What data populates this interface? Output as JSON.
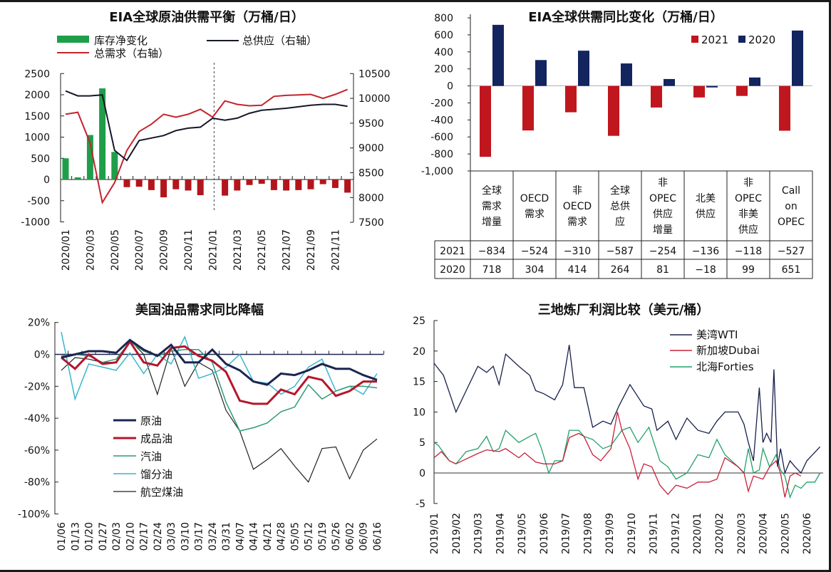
{
  "chart_data": [
    {
      "type": "bar+line",
      "title": "EIA全球原油供需平衡（万桶/日）",
      "legend": [
        "库存净变化",
        "总需求（右轴）",
        "总供应（右轴）"
      ],
      "colors": {
        "inventory_pos": "#1f9e4a",
        "inventory_neg": "#b3151c",
        "demand": "#c3242c",
        "supply": "#15172a"
      },
      "months": [
        "2020/01",
        "2020/02",
        "2020/03",
        "2020/04",
        "2020/05",
        "2020/06",
        "2020/07",
        "2020/08",
        "2020/09",
        "2020/10",
        "2020/11",
        "2020/12",
        "2021/01",
        "2021/02",
        "2021/03",
        "2021/04",
        "2021/05",
        "2021/06",
        "2021/07",
        "2021/08",
        "2021/09",
        "2021/10",
        "2021/11",
        "2021/12"
      ],
      "x_labels": [
        "2020/01",
        "2020/03",
        "2020/05",
        "2020/07",
        "2020/09",
        "2020/11",
        "2021/01",
        "2021/03",
        "2021/05",
        "2021/07",
        "2021/09",
        "2021/11"
      ],
      "y_left_ticks": [
        2500,
        2000,
        1500,
        1000,
        500,
        0,
        -500,
        -1000
      ],
      "y_right_ticks": [
        10500,
        10000,
        9500,
        9000,
        8500,
        8000,
        7500
      ],
      "ylim_left": [
        -1000,
        2500
      ],
      "ylim_right": [
        7500,
        10500
      ],
      "forecast_divider": "2021/01",
      "series": [
        {
          "name": "库存净变化",
          "axis": "left",
          "kind": "bar",
          "values": [
            500,
            50,
            1050,
            2150,
            650,
            -180,
            -170,
            -250,
            -420,
            -230,
            -260,
            -370,
            0,
            -380,
            -260,
            -130,
            -100,
            -250,
            -260,
            -250,
            -230,
            -110,
            -200,
            -310
          ]
        },
        {
          "name": "总需求（右轴）",
          "axis": "right",
          "kind": "line",
          "values": [
            9680,
            9720,
            9100,
            7900,
            8300,
            8950,
            9330,
            9480,
            9680,
            9620,
            9680,
            9780,
            9620,
            9950,
            9880,
            9850,
            9860,
            10040,
            10060,
            10070,
            10080,
            10000,
            10080,
            10180
          ]
        },
        {
          "name": "总供应（右轴）",
          "axis": "right",
          "kind": "line",
          "values": [
            10150,
            10050,
            10050,
            10070,
            8950,
            8750,
            9150,
            9200,
            9250,
            9350,
            9400,
            9420,
            9600,
            9560,
            9600,
            9700,
            9760,
            9780,
            9800,
            9830,
            9860,
            9880,
            9880,
            9840
          ]
        }
      ]
    },
    {
      "type": "bar+table",
      "title": "EIA全球供需同比变化（万桶/日）",
      "legend": [
        "2021",
        "2020"
      ],
      "colors": {
        "2021": "#c0161e",
        "2020": "#13245e"
      },
      "y_ticks": [
        "800",
        "600",
        "400",
        "200",
        "0",
        "-200",
        "-400",
        "-600",
        "-800",
        "-1,000"
      ],
      "ylim": [
        -1000,
        800
      ],
      "categories": [
        "全球\n需求\n增量",
        "OECD\n需求",
        "非\nOECD\n需求",
        "全球\n总供\n应",
        "非\nOPEC\n供应\n增量",
        "北美\n供应",
        "非\nOPEC\n非美\n供应",
        "Call\non\nOPEC"
      ],
      "series": [
        {
          "name": "2021",
          "values": [
            -834,
            -524,
            -310,
            -587,
            -254,
            -136,
            -118,
            -527
          ]
        },
        {
          "name": "2020",
          "values": [
            718,
            304,
            414,
            264,
            81,
            -18,
            99,
            651
          ]
        }
      ]
    },
    {
      "type": "line",
      "title": "美国油品需求同比降幅",
      "x": [
        "01/06",
        "01/13",
        "01/20",
        "01/27",
        "02/03",
        "02/10",
        "02/17",
        "02/24",
        "03/03",
        "03/10",
        "03/17",
        "03/24",
        "03/31",
        "04/07",
        "04/14",
        "04/21",
        "04/28",
        "05/05",
        "05/12",
        "05/19",
        "05/26",
        "06/02",
        "06/09",
        "06/16"
      ],
      "y_ticks": [
        "20%",
        "0%",
        "-20%",
        "-40%",
        "-60%",
        "-80%",
        "-100%"
      ],
      "ylim": [
        -100,
        20
      ],
      "legend_position": "lower-left",
      "series": [
        {
          "name": "原油",
          "color": "#1b2550",
          "values": [
            -2,
            0,
            2,
            2,
            1,
            9,
            3,
            -1,
            6,
            -5,
            -5,
            3,
            -6,
            -10,
            -17,
            -19,
            -12,
            -13,
            -10,
            -6,
            -9,
            -9,
            -13,
            -16
          ]
        },
        {
          "name": "成品油",
          "color": "#b5162a",
          "values": [
            -2,
            -9,
            0,
            -6,
            -5,
            8,
            -5,
            -7,
            4,
            5,
            -1,
            -4,
            -11,
            -29,
            -31,
            -31,
            -22,
            -25,
            -14,
            -16,
            -26,
            -23,
            -17,
            -17
          ]
        },
        {
          "name": "汽油",
          "color": "#2e9c74",
          "values": [
            -1,
            0,
            -1,
            -5,
            -3,
            8,
            2,
            -1,
            2,
            3,
            3,
            -5,
            -30,
            -48,
            -46,
            -43,
            -36,
            -33,
            -19,
            -28,
            -23,
            -20,
            -20,
            -21
          ]
        },
        {
          "name": "馏分油",
          "color": "#3ab6cc",
          "values": [
            14,
            -28,
            -6,
            -8,
            -10,
            1,
            -12,
            0,
            -6,
            11,
            -15,
            -12,
            -8,
            0,
            -17,
            -18,
            -25,
            -20,
            -8,
            -3,
            -23,
            -20,
            -25,
            -12
          ]
        },
        {
          "name": "航空煤油",
          "color": "#222222",
          "values": [
            -10,
            -2,
            -3,
            -5,
            -5,
            9,
            0,
            -25,
            4,
            -20,
            -5,
            -10,
            -35,
            -48,
            -72,
            -66,
            -59,
            -70,
            -80,
            -59,
            -58,
            -78,
            -60,
            -53
          ]
        }
      ]
    },
    {
      "type": "line",
      "title": "三地炼厂利润比较（美元/桶）",
      "x_labels": [
        "2019/01",
        "2019/02",
        "2019/03",
        "2019/04",
        "2019/05",
        "2019/06",
        "2019/07",
        "2019/08",
        "2019/09",
        "2019/10",
        "2019/11",
        "2019/12",
        "2020/01",
        "2020/02",
        "2020/03",
        "2020/04",
        "2020/05",
        "2020/06"
      ],
      "y_ticks": [
        "25",
        "20",
        "15",
        "10",
        "5",
        "0",
        "-5"
      ],
      "ylim": [
        -5,
        25
      ],
      "legend_position": "top-right",
      "series": [
        {
          "name": "美湾WTI",
          "color": "#17204a",
          "x": [
            "2019-01-01",
            "2019-01-14",
            "2019-02-01",
            "2019-02-15",
            "2019-03-01",
            "2019-03-13",
            "2019-03-22",
            "2019-03-30",
            "2019-04-09",
            "2019-04-27",
            "2019-05-12",
            "2019-05-20",
            "2019-06-01",
            "2019-06-16",
            "2019-06-27",
            "2019-07-06",
            "2019-07-13",
            "2019-07-26",
            "2019-08-08",
            "2019-08-22",
            "2019-09-03",
            "2019-09-14",
            "2019-09-29",
            "2019-10-18",
            "2019-10-29",
            "2019-11-06",
            "2019-11-21",
            "2019-12-02",
            "2019-12-17",
            "2020-01-02",
            "2020-01-17",
            "2020-01-28",
            "2020-02-09",
            "2020-02-27",
            "2020-03-05",
            "2020-03-11",
            "2020-03-18",
            "2020-03-26",
            "2020-04-01",
            "2020-04-06",
            "2020-04-12",
            "2020-04-16",
            "2020-04-21",
            "2020-04-25",
            "2020-05-01",
            "2020-05-08",
            "2020-05-15",
            "2020-05-23",
            "2020-06-01",
            "2020-06-19"
          ],
          "values": [
            18,
            16,
            10,
            13.5,
            17.5,
            16.5,
            17.5,
            14.5,
            19.5,
            17.5,
            16,
            13.5,
            13,
            12,
            14.5,
            21,
            14,
            14,
            7.5,
            8.5,
            8,
            11,
            14.5,
            11,
            10.5,
            7,
            8.5,
            5.5,
            9,
            7,
            6.5,
            8.5,
            10,
            10,
            8,
            5,
            2,
            14,
            5,
            6.5,
            5,
            17,
            1,
            4,
            0,
            2,
            1,
            0,
            2,
            4.3
          ]
        },
        {
          "name": "新加坡Dubai",
          "color": "#c8203a",
          "x": [
            "2019-01-01",
            "2019-01-11",
            "2019-01-22",
            "2019-02-01",
            "2019-02-15",
            "2019-03-01",
            "2019-03-13",
            "2019-03-30",
            "2019-04-09",
            "2019-04-27",
            "2019-05-05",
            "2019-05-20",
            "2019-06-01",
            "2019-06-16",
            "2019-06-27",
            "2019-07-06",
            "2019-07-19",
            "2019-07-26",
            "2019-08-08",
            "2019-08-19",
            "2019-09-03",
            "2019-09-12",
            "2019-09-18",
            "2019-09-29",
            "2019-10-10",
            "2019-10-18",
            "2019-10-29",
            "2019-11-10",
            "2019-11-21",
            "2019-12-02",
            "2019-12-17",
            "2020-01-02",
            "2020-01-17",
            "2020-01-28",
            "2020-02-09",
            "2020-02-27",
            "2020-03-05",
            "2020-03-11",
            "2020-03-18",
            "2020-04-01",
            "2020-04-10",
            "2020-04-19",
            "2020-04-25",
            "2020-05-01",
            "2020-05-08",
            "2020-05-15",
            "2020-05-23"
          ],
          "values": [
            2.5,
            3.5,
            2,
            1.5,
            2.3,
            3.2,
            3.8,
            3.5,
            4,
            2.5,
            3.3,
            1.8,
            1.5,
            1.5,
            2,
            5.8,
            6.5,
            6,
            3,
            2,
            4,
            10,
            7,
            4,
            -1,
            1.5,
            1,
            -2,
            -3.5,
            -2,
            -2.5,
            -1.5,
            -1.5,
            -1,
            2.5,
            1,
            0,
            -3,
            -0.5,
            -1,
            1,
            2,
            0,
            -4,
            -0.5,
            0,
            -0.5
          ]
        },
        {
          "name": "北海Forties",
          "color": "#22a06a",
          "x": [
            "2019-01-01",
            "2019-01-07",
            "2019-01-22",
            "2019-02-01",
            "2019-02-15",
            "2019-03-01",
            "2019-03-13",
            "2019-03-22",
            "2019-03-30",
            "2019-04-09",
            "2019-04-27",
            "2019-05-12",
            "2019-05-20",
            "2019-05-28",
            "2019-06-08",
            "2019-06-16",
            "2019-06-27",
            "2019-07-06",
            "2019-07-19",
            "2019-07-26",
            "2019-08-08",
            "2019-08-22",
            "2019-09-03",
            "2019-09-12",
            "2019-09-18",
            "2019-09-29",
            "2019-10-10",
            "2019-10-25",
            "2019-11-10",
            "2019-11-21",
            "2019-12-02",
            "2019-12-17",
            "2020-01-02",
            "2020-01-17",
            "2020-01-28",
            "2020-02-09",
            "2020-02-27",
            "2020-03-05",
            "2020-03-11",
            "2020-03-18",
            "2020-03-26",
            "2020-04-01",
            "2020-04-10",
            "2020-04-19",
            "2020-04-25",
            "2020-05-01",
            "2020-05-08",
            "2020-05-15",
            "2020-05-23",
            "2020-06-01",
            "2020-06-12",
            "2020-06-19"
          ],
          "values": [
            5,
            4.5,
            2,
            1.5,
            3.5,
            4,
            6,
            3.5,
            4,
            7,
            5,
            6,
            6.5,
            4,
            0,
            2,
            2,
            7,
            7,
            6,
            5.5,
            4,
            4.5,
            6,
            7,
            7.5,
            5,
            7.5,
            2,
            1,
            -1,
            0,
            3,
            2.5,
            5.5,
            3,
            1,
            0,
            4,
            0,
            0.5,
            4,
            1,
            3,
            0.5,
            -0.5,
            -4,
            -2,
            -2.5,
            -1.5,
            -1.5,
            0
          ]
        }
      ]
    }
  ]
}
